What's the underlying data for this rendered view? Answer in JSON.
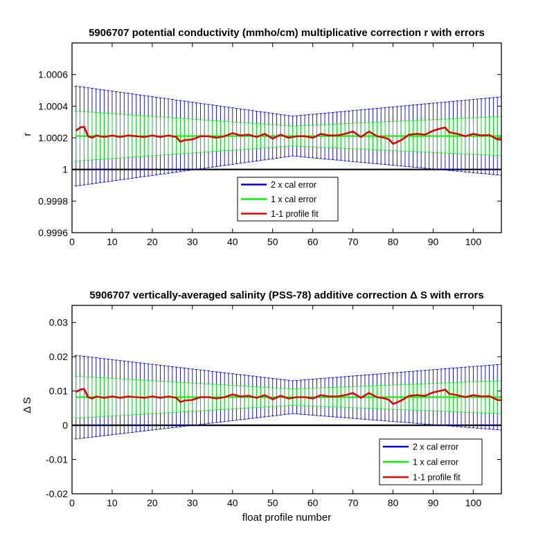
{
  "chart_data": [
    {
      "type": "line",
      "title": "5906707 potential conductivity (mmho/cm) multiplicative correction r with errors",
      "xlabel": "",
      "ylabel": "r",
      "xlim": [
        0,
        107
      ],
      "ylim": [
        0.9996,
        1.0008
      ],
      "xticks": [
        0,
        10,
        20,
        30,
        40,
        50,
        60,
        70,
        80,
        90,
        100
      ],
      "xtick_labels": [
        "0",
        "10",
        "20",
        "30",
        "40",
        "50",
        "60",
        "70",
        "80",
        "90",
        "100"
      ],
      "yticks": [
        0.9996,
        0.9998,
        1.0,
        1.0002,
        1.0004,
        1.0006
      ],
      "ytick_labels": [
        "0.9996",
        "0.9998",
        "1",
        "1.0002",
        "1.0004",
        "1.0006"
      ],
      "reference_line": 1.0,
      "legend_position": "lower-center",
      "center_value": 1.000211,
      "error_2x": {
        "x": [
          1,
          55,
          107
        ],
        "values": [
          0.000316,
          0.000126,
          0.000248
        ]
      },
      "error_1x": {
        "x": [
          1,
          55,
          107
        ],
        "values": [
          0.000158,
          6.3e-05,
          0.000124
        ]
      },
      "profile_fit": {
        "x": [
          1,
          2,
          3,
          4,
          5,
          6,
          8,
          10,
          12,
          14,
          16,
          18,
          20,
          22,
          24,
          26,
          27,
          28,
          30,
          32,
          34,
          36,
          38,
          40,
          42,
          44,
          46,
          48,
          50,
          52,
          54,
          56,
          58,
          60,
          62,
          64,
          66,
          68,
          70,
          72,
          74,
          76,
          78,
          79,
          80,
          82,
          84,
          86,
          88,
          90,
          92,
          93,
          94,
          96,
          98,
          100,
          102,
          104,
          106,
          107
        ],
        "values": [
          1.000245,
          1.000265,
          1.00027,
          1.00021,
          1.0002,
          1.000215,
          1.000205,
          1.000215,
          1.000205,
          1.000215,
          1.00021,
          1.000205,
          1.000215,
          1.000205,
          1.000215,
          1.000205,
          1.000175,
          1.000185,
          1.00019,
          1.00021,
          1.00021,
          1.0002,
          1.00021,
          1.00023,
          1.000215,
          1.00022,
          1.000205,
          1.000225,
          1.000195,
          1.00022,
          1.0002,
          1.00021,
          1.00021,
          1.0002,
          1.000225,
          1.000215,
          1.000215,
          1.000225,
          1.00024,
          1.000205,
          1.00024,
          1.00021,
          1.0002,
          1.00019,
          1.000162,
          1.000185,
          1.00022,
          1.000225,
          1.00022,
          1.000245,
          1.00026,
          1.000265,
          1.000235,
          1.000225,
          1.00021,
          1.000225,
          1.000215,
          1.000218,
          1.00019,
          1.000188
        ]
      },
      "legend": [
        "2 x cal error",
        "1 x cal error",
        "1-1 profile fit"
      ],
      "colors": {
        "error_2x": "#0000cc",
        "error_1x": "#00ee00",
        "profile_fit": "#dd0000",
        "reference": "#000000"
      }
    },
    {
      "type": "line",
      "title": "5906707 vertically-averaged salinity (PSS-78) additive correction Δ S with errors",
      "xlabel": "float profile number",
      "ylabel": "Δ S",
      "xlim": [
        0,
        107
      ],
      "ylim": [
        -0.02,
        0.035
      ],
      "xticks": [
        0,
        10,
        20,
        30,
        40,
        50,
        60,
        70,
        80,
        90,
        100
      ],
      "xtick_labels": [
        "0",
        "10",
        "20",
        "30",
        "40",
        "50",
        "60",
        "70",
        "80",
        "90",
        "100"
      ],
      "yticks": [
        -0.02,
        -0.01,
        0,
        0.01,
        0.02,
        0.03
      ],
      "ytick_labels": [
        "-0.02",
        "-0.01",
        "0",
        "0.01",
        "0.02",
        "0.03"
      ],
      "reference_line": 0,
      "legend_position": "lower-right",
      "center_value": 0.0082,
      "error_2x": {
        "x": [
          1,
          55,
          107
        ],
        "values": [
          0.0122,
          0.0048,
          0.0096
        ]
      },
      "error_1x": {
        "x": [
          1,
          55,
          107
        ],
        "values": [
          0.0061,
          0.0024,
          0.0048
        ]
      },
      "profile_fit": {
        "x": [
          1,
          2,
          3,
          4,
          5,
          6,
          8,
          10,
          12,
          14,
          16,
          18,
          20,
          22,
          24,
          26,
          27,
          28,
          30,
          32,
          34,
          36,
          38,
          40,
          42,
          44,
          46,
          48,
          50,
          52,
          54,
          56,
          58,
          60,
          62,
          64,
          66,
          68,
          70,
          72,
          74,
          76,
          78,
          79,
          80,
          82,
          84,
          86,
          88,
          90,
          92,
          93,
          94,
          96,
          98,
          100,
          102,
          104,
          106,
          107
        ],
        "values": [
          0.0097,
          0.0104,
          0.0106,
          0.0082,
          0.0078,
          0.0084,
          0.008,
          0.0084,
          0.008,
          0.0084,
          0.0082,
          0.008,
          0.0084,
          0.008,
          0.0084,
          0.008,
          0.0068,
          0.0072,
          0.0074,
          0.0082,
          0.0082,
          0.0078,
          0.0082,
          0.009,
          0.0084,
          0.0086,
          0.008,
          0.0088,
          0.0076,
          0.0086,
          0.0078,
          0.0082,
          0.0082,
          0.0078,
          0.0088,
          0.0084,
          0.0084,
          0.0088,
          0.0094,
          0.008,
          0.0094,
          0.0082,
          0.0078,
          0.0074,
          0.0062,
          0.0072,
          0.0086,
          0.0088,
          0.0086,
          0.0096,
          0.0101,
          0.0104,
          0.0092,
          0.0088,
          0.0082,
          0.0088,
          0.0084,
          0.0085,
          0.0074,
          0.0073
        ]
      },
      "legend": [
        "2 x cal error",
        "1 x cal error",
        "1-1 profile fit"
      ],
      "colors": {
        "error_2x": "#0000cc",
        "error_1x": "#00ee00",
        "profile_fit": "#dd0000",
        "reference": "#000000"
      }
    }
  ]
}
